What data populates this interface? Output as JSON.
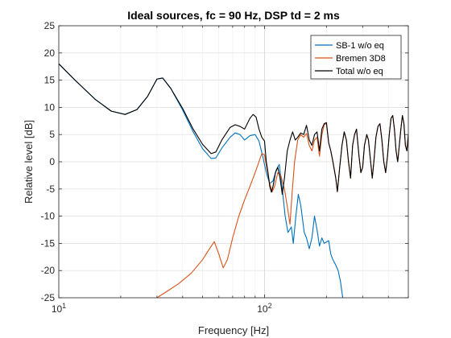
{
  "chart_data": {
    "type": "line",
    "title": "Ideal sources, fc = 90 Hz, DSP td = 2 ms",
    "xlabel": "Frequency [Hz]",
    "ylabel": "Relative level [dB]",
    "x_scale": "log",
    "xlim": [
      10,
      500
    ],
    "ylim": [
      -25,
      25
    ],
    "x_ticks": [
      {
        "value": 10,
        "base": "10",
        "exp": "1"
      },
      {
        "value": 100,
        "base": "10",
        "exp": "2"
      }
    ],
    "y_ticks": [
      -25,
      -20,
      -15,
      -10,
      -5,
      0,
      5,
      10,
      15,
      20,
      25
    ],
    "y_tick_labels": [
      "-25",
      "-20",
      "-15",
      "-10",
      "-5",
      "0",
      "5",
      "10",
      "15",
      "20",
      "25"
    ],
    "grid": true,
    "legend": "top-right",
    "series": [
      {
        "name": "SB-1 w/o eq",
        "color": "#0072BD",
        "points": [
          [
            10,
            18
          ],
          [
            12,
            15
          ],
          [
            15,
            11.5
          ],
          [
            18,
            9.3
          ],
          [
            21,
            8.7
          ],
          [
            24,
            9.6
          ],
          [
            27,
            12
          ],
          [
            30,
            15.2
          ],
          [
            32,
            15.4
          ],
          [
            35,
            13.5
          ],
          [
            40,
            9.5
          ],
          [
            45,
            5.5
          ],
          [
            50,
            2.4
          ],
          [
            55,
            0.6
          ],
          [
            58,
            0.7
          ],
          [
            62,
            2.5
          ],
          [
            68,
            4.5
          ],
          [
            72,
            5.3
          ],
          [
            76,
            5.0
          ],
          [
            80,
            4.0
          ],
          [
            85,
            4.8
          ],
          [
            90,
            5.0
          ],
          [
            94,
            3.8
          ],
          [
            98,
            1.0
          ],
          [
            102,
            -2.0
          ],
          [
            106,
            -4.0
          ],
          [
            110,
            -3.5
          ],
          [
            114,
            -1.5
          ],
          [
            118,
            -0.5
          ],
          [
            122,
            -5.0
          ],
          [
            126,
            -10
          ],
          [
            130,
            -13
          ],
          [
            135,
            -12
          ],
          [
            138,
            -15
          ],
          [
            142,
            -10
          ],
          [
            146,
            -6
          ],
          [
            150,
            -8
          ],
          [
            156,
            -13
          ],
          [
            160,
            -14
          ],
          [
            165,
            -16
          ],
          [
            170,
            -14
          ],
          [
            175,
            -10
          ],
          [
            180,
            -12.5
          ],
          [
            185,
            -15.5
          ],
          [
            190,
            -14
          ],
          [
            195,
            -15
          ],
          [
            205,
            -14.5
          ],
          [
            210,
            -17
          ],
          [
            215,
            -18
          ],
          [
            222,
            -19
          ],
          [
            228,
            -20
          ],
          [
            234,
            -22
          ],
          [
            240,
            -25
          ]
        ]
      },
      {
        "name": "Bremen 3D8",
        "color": "#D95319",
        "points": [
          [
            30,
            -25
          ],
          [
            33,
            -24
          ],
          [
            38,
            -22.5
          ],
          [
            44,
            -20.5
          ],
          [
            50,
            -18
          ],
          [
            54,
            -16
          ],
          [
            57,
            -14.7
          ],
          [
            60,
            -17
          ],
          [
            63,
            -19.5
          ],
          [
            66,
            -18
          ],
          [
            70,
            -14
          ],
          [
            75,
            -10
          ],
          [
            80,
            -7
          ],
          [
            85,
            -4.5
          ],
          [
            90,
            -2
          ],
          [
            94,
            0
          ],
          [
            97,
            1.5
          ],
          [
            100,
            1.3
          ],
          [
            103,
            -1.5
          ],
          [
            106,
            -4
          ],
          [
            109,
            -5.5
          ],
          [
            112,
            -4.5
          ],
          [
            116,
            -2
          ],
          [
            120,
            -2.5
          ],
          [
            125,
            -5
          ],
          [
            130,
            -9
          ],
          [
            133,
            -11.5
          ],
          [
            136,
            -6
          ],
          [
            140,
            0
          ],
          [
            145,
            4
          ],
          [
            150,
            5
          ],
          [
            155,
            4.5
          ],
          [
            160,
            5.2
          ],
          [
            165,
            3
          ],
          [
            170,
            2
          ],
          [
            175,
            4
          ],
          [
            180,
            4.5
          ],
          [
            185,
            1
          ],
          [
            190,
            5
          ],
          [
            195,
            6.8
          ],
          [
            200,
            7
          ],
          [
            205,
            3.5
          ],
          [
            210,
            2
          ],
          [
            215,
            0
          ],
          [
            222,
            -3
          ],
          [
            226,
            -5.5
          ],
          [
            232,
            -1
          ],
          [
            238,
            3
          ],
          [
            244,
            5.5
          ],
          [
            250,
            4
          ],
          [
            256,
            0
          ],
          [
            262,
            -3
          ],
          [
            268,
            3
          ],
          [
            274,
            5
          ],
          [
            280,
            6
          ],
          [
            288,
            1
          ],
          [
            294,
            -2
          ],
          [
            300,
            -1
          ],
          [
            306,
            3
          ],
          [
            314,
            5
          ],
          [
            320,
            4
          ],
          [
            328,
            0
          ],
          [
            334,
            -3
          ],
          [
            340,
            0
          ],
          [
            348,
            4.5
          ],
          [
            356,
            6.5
          ],
          [
            364,
            7
          ],
          [
            372,
            4
          ],
          [
            380,
            0
          ],
          [
            388,
            -2
          ],
          [
            396,
            1
          ],
          [
            404,
            5
          ],
          [
            412,
            8
          ],
          [
            420,
            8.5
          ],
          [
            428,
            6
          ],
          [
            436,
            2
          ],
          [
            444,
            0
          ],
          [
            452,
            3
          ],
          [
            460,
            6
          ],
          [
            468,
            8.5
          ],
          [
            476,
            7
          ],
          [
            484,
            3
          ],
          [
            492,
            2
          ],
          [
            500,
            5
          ]
        ]
      },
      {
        "name": "Total w/o eq",
        "color": "#000000",
        "points": [
          [
            10,
            18
          ],
          [
            12,
            15
          ],
          [
            15,
            11.5
          ],
          [
            18,
            9.3
          ],
          [
            21,
            8.7
          ],
          [
            24,
            9.6
          ],
          [
            27,
            12
          ],
          [
            30,
            15.2
          ],
          [
            32,
            15.4
          ],
          [
            35,
            13.5
          ],
          [
            40,
            9.8
          ],
          [
            45,
            6
          ],
          [
            50,
            3.2
          ],
          [
            55,
            1.5
          ],
          [
            58,
            1.8
          ],
          [
            62,
            4
          ],
          [
            68,
            6.3
          ],
          [
            72,
            6.8
          ],
          [
            76,
            6.5
          ],
          [
            80,
            6
          ],
          [
            85,
            8
          ],
          [
            88,
            8.7
          ],
          [
            91,
            8.2
          ],
          [
            94,
            6
          ],
          [
            97,
            4.5
          ],
          [
            100,
            3.8
          ],
          [
            102,
            0
          ],
          [
            104,
            -2
          ],
          [
            106,
            -4.5
          ],
          [
            108,
            -5.6
          ],
          [
            110,
            -4.5
          ],
          [
            113,
            -2
          ],
          [
            116,
            -1
          ],
          [
            119,
            -3
          ],
          [
            122,
            -6
          ],
          [
            125,
            -3
          ],
          [
            129,
            2
          ],
          [
            133,
            4
          ],
          [
            137,
            5.5
          ],
          [
            141,
            4
          ],
          [
            145,
            4.5
          ],
          [
            150,
            5.3
          ],
          [
            155,
            5
          ],
          [
            160,
            6.7
          ],
          [
            165,
            4
          ],
          [
            170,
            3
          ],
          [
            175,
            5
          ],
          [
            180,
            5.5
          ],
          [
            185,
            2
          ],
          [
            190,
            6
          ],
          [
            195,
            7
          ],
          [
            200,
            7.2
          ],
          [
            205,
            3.5
          ],
          [
            210,
            2
          ],
          [
            215,
            0
          ],
          [
            222,
            -3
          ],
          [
            226,
            -5.5
          ],
          [
            232,
            -1
          ],
          [
            238,
            3
          ],
          [
            244,
            5.5
          ],
          [
            250,
            4
          ],
          [
            256,
            0
          ],
          [
            262,
            -3
          ],
          [
            268,
            3
          ],
          [
            274,
            5
          ],
          [
            280,
            6
          ],
          [
            288,
            1
          ],
          [
            294,
            -2
          ],
          [
            300,
            -1
          ],
          [
            306,
            3
          ],
          [
            314,
            5
          ],
          [
            320,
            4
          ],
          [
            328,
            0
          ],
          [
            334,
            -3
          ],
          [
            340,
            0
          ],
          [
            348,
            4.5
          ],
          [
            356,
            6.5
          ],
          [
            364,
            7
          ],
          [
            372,
            4
          ],
          [
            380,
            0
          ],
          [
            388,
            -2
          ],
          [
            396,
            1
          ],
          [
            404,
            5
          ],
          [
            412,
            8
          ],
          [
            420,
            8.5
          ],
          [
            428,
            6
          ],
          [
            436,
            2
          ],
          [
            444,
            0
          ],
          [
            452,
            3
          ],
          [
            460,
            6
          ],
          [
            468,
            8.5
          ],
          [
            476,
            7
          ],
          [
            484,
            3
          ],
          [
            492,
            2
          ],
          [
            500,
            5
          ]
        ]
      }
    ]
  }
}
